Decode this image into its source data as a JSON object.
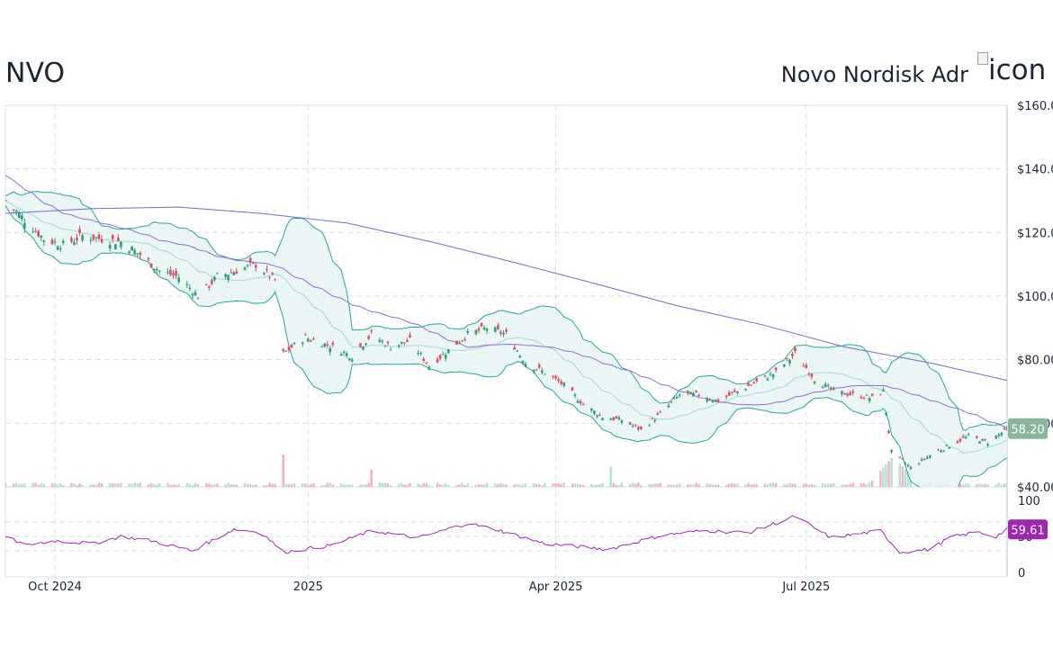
{
  "header": {
    "ticker": "NVO",
    "company": "Novo Nordisk Adr",
    "logo_alt": "icon"
  },
  "colors": {
    "up": "#2e9e77",
    "down": "#dc4e64",
    "band_line": "#26a69a",
    "band_fill": "#e4f4f2",
    "ma_mid": "#9fd8d0",
    "sma_short": "#8e6fd1",
    "sma_long": "#6a70c4",
    "rsi": "#9c27b0",
    "price_badge": "#8bb59a",
    "grid": "#d6e1e6"
  },
  "chart_data": {
    "type": "candlestick",
    "title": "",
    "price_axis": {
      "ylim": [
        40,
        160
      ],
      "ticks": [
        40,
        60,
        80,
        100,
        120,
        140,
        160
      ],
      "tick_labels": [
        "$40.00",
        "$60.00",
        "$80.00",
        "$100.00",
        "$120.00",
        "$140.00",
        "$160.00"
      ]
    },
    "rsi_axis": {
      "ylim": [
        0,
        100
      ],
      "ticks": [
        0,
        50,
        100
      ],
      "tick_labels": [
        "0",
        "50",
        "100"
      ],
      "gridlines": [
        30,
        50,
        70
      ]
    },
    "x_axis": {
      "range": [
        "2024-09-13",
        "2025-09-12"
      ],
      "ticks": [
        {
          "date": "2024-10-01",
          "label": "Oct 2024"
        },
        {
          "date": "2025-01-01",
          "label": "2025"
        },
        {
          "date": "2025-04-01",
          "label": "Apr 2025"
        },
        {
          "date": "2025-07-01",
          "label": "Jul 2025"
        }
      ]
    },
    "last_price": 58.2,
    "last_price_label": "58.20",
    "last_rsi": 59.61,
    "last_rsi_label": "59.61",
    "close_anchors": [
      [
        "2024-09-13",
        130
      ],
      [
        "2024-09-20",
        124
      ],
      [
        "2024-09-27",
        118
      ],
      [
        "2024-10-04",
        116
      ],
      [
        "2024-10-11",
        119
      ],
      [
        "2024-10-18",
        118
      ],
      [
        "2024-10-25",
        117
      ],
      [
        "2024-11-01",
        113
      ],
      [
        "2024-11-08",
        108
      ],
      [
        "2024-11-15",
        106
      ],
      [
        "2024-11-22",
        100
      ],
      [
        "2024-11-29",
        106
      ],
      [
        "2024-12-06",
        108
      ],
      [
        "2024-12-13",
        110
      ],
      [
        "2024-12-20",
        105
      ],
      [
        "2024-12-23",
        82
      ],
      [
        "2024-12-31",
        87
      ],
      [
        "2025-01-10",
        84
      ],
      [
        "2025-01-17",
        81
      ],
      [
        "2025-01-24",
        88
      ],
      [
        "2025-01-31",
        84
      ],
      [
        "2025-02-07",
        86
      ],
      [
        "2025-02-14",
        78
      ],
      [
        "2025-02-21",
        83
      ],
      [
        "2025-02-28",
        88
      ],
      [
        "2025-03-07",
        90
      ],
      [
        "2025-03-14",
        88
      ],
      [
        "2025-03-21",
        79
      ],
      [
        "2025-03-28",
        76
      ],
      [
        "2025-04-04",
        72
      ],
      [
        "2025-04-11",
        66
      ],
      [
        "2025-04-18",
        62
      ],
      [
        "2025-04-25",
        61
      ],
      [
        "2025-05-02",
        58
      ],
      [
        "2025-05-09",
        63
      ],
      [
        "2025-05-16",
        69
      ],
      [
        "2025-05-23",
        69
      ],
      [
        "2025-05-30",
        67
      ],
      [
        "2025-06-06",
        70
      ],
      [
        "2025-06-13",
        73
      ],
      [
        "2025-06-20",
        76
      ],
      [
        "2025-06-27",
        82
      ],
      [
        "2025-07-04",
        74
      ],
      [
        "2025-07-11",
        70
      ],
      [
        "2025-07-18",
        69
      ],
      [
        "2025-07-25",
        68
      ],
      [
        "2025-07-29",
        70
      ],
      [
        "2025-08-01",
        51
      ],
      [
        "2025-08-08",
        46
      ],
      [
        "2025-08-15",
        50
      ],
      [
        "2025-08-22",
        53
      ],
      [
        "2025-08-29",
        56
      ],
      [
        "2025-09-05",
        54
      ],
      [
        "2025-09-12",
        58.2
      ]
    ],
    "sma_long": [
      [
        "2024-09-13",
        126
      ],
      [
        "2024-10-15",
        127.5
      ],
      [
        "2024-11-15",
        128
      ],
      [
        "2024-12-15",
        126
      ],
      [
        "2025-01-15",
        123
      ],
      [
        "2025-02-15",
        117
      ],
      [
        "2025-03-15",
        111
      ],
      [
        "2025-04-15",
        104
      ],
      [
        "2025-05-15",
        97
      ],
      [
        "2025-06-15",
        91
      ],
      [
        "2025-07-15",
        84
      ],
      [
        "2025-08-15",
        79
      ],
      [
        "2025-09-12",
        73.5
      ]
    ],
    "volume_spikes": [
      [
        "2024-12-23",
        4.5
      ],
      [
        "2025-08-01",
        4.0
      ],
      [
        "2025-08-04",
        3.2
      ],
      [
        "2025-01-24",
        2.4
      ],
      [
        "2025-04-21",
        2.8
      ]
    ],
    "rsi_anchors": [
      [
        "2024-09-13",
        50
      ],
      [
        "2024-09-20",
        38
      ],
      [
        "2024-10-01",
        44
      ],
      [
        "2024-10-15",
        40
      ],
      [
        "2024-10-25",
        50
      ],
      [
        "2024-11-05",
        44
      ],
      [
        "2024-11-20",
        30
      ],
      [
        "2024-12-05",
        60
      ],
      [
        "2024-12-15",
        56
      ],
      [
        "2024-12-23",
        28
      ],
      [
        "2025-01-10",
        38
      ],
      [
        "2025-01-24",
        58
      ],
      [
        "2025-02-10",
        48
      ],
      [
        "2025-02-28",
        68
      ],
      [
        "2025-03-10",
        60
      ],
      [
        "2025-03-28",
        40
      ],
      [
        "2025-04-20",
        32
      ],
      [
        "2025-05-10",
        52
      ],
      [
        "2025-05-25",
        58
      ],
      [
        "2025-06-10",
        55
      ],
      [
        "2025-06-27",
        78
      ],
      [
        "2025-07-10",
        48
      ],
      [
        "2025-07-28",
        58
      ],
      [
        "2025-08-04",
        28
      ],
      [
        "2025-08-15",
        32
      ],
      [
        "2025-08-22",
        48
      ],
      [
        "2025-09-01",
        56
      ],
      [
        "2025-09-08",
        50
      ],
      [
        "2025-09-12",
        59.61
      ]
    ]
  }
}
